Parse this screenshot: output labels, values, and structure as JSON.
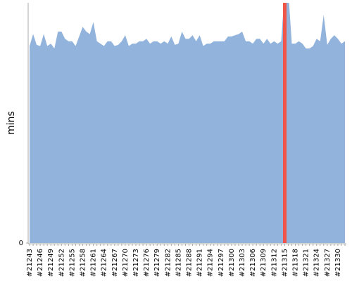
{
  "chart_data": {
    "type": "area",
    "y_label": "mins",
    "categories": [
      "#21243",
      null,
      null,
      "#21246",
      null,
      null,
      "#21249",
      null,
      null,
      "#21252",
      null,
      null,
      "#21255",
      null,
      null,
      "#21258",
      null,
      null,
      "#21261",
      null,
      null,
      "#21264",
      null,
      null,
      "#21267",
      null,
      null,
      "#21270",
      null,
      null,
      "#21273",
      null,
      null,
      "#21276",
      null,
      null,
      "#21279",
      null,
      null,
      "#21282",
      null,
      null,
      "#21285",
      null,
      null,
      "#21288",
      null,
      null,
      "#21291",
      null,
      null,
      "#21294",
      null,
      null,
      "#21297",
      null,
      null,
      "#21300",
      null,
      null,
      "#21303",
      null,
      null,
      "#21306",
      null,
      null,
      "#21309",
      null,
      null,
      "#21312",
      null,
      null,
      "#21315",
      null,
      null,
      "#21318",
      null,
      null,
      "#21321",
      null,
      null,
      "#21324",
      null,
      null,
      "#21327",
      null,
      null,
      "#21330",
      null,
      null
    ],
    "series": [
      {
        "color": "#91b3dc",
        "values": [
          82,
          87,
          82.5,
          82,
          87,
          82,
          83,
          81,
          88,
          88,
          85,
          84,
          84,
          82,
          86,
          90,
          88,
          87,
          92,
          84,
          83,
          82,
          84,
          84,
          82,
          82.5,
          84,
          86.5,
          82,
          83,
          83,
          84,
          84,
          85,
          83,
          84,
          84,
          83,
          84,
          83,
          86,
          82.5,
          83,
          88,
          85,
          85,
          86.5,
          84,
          86.5,
          82,
          83,
          83,
          84,
          84,
          84,
          84,
          86,
          86,
          86.5,
          87,
          88,
          84,
          84,
          83,
          85,
          85,
          83,
          85,
          83,
          84,
          83,
          84,
          105,
          105,
          83,
          83,
          84,
          83,
          81,
          81,
          82,
          85,
          84,
          95,
          82.5,
          85,
          86.5,
          85,
          83,
          84
        ]
      }
    ],
    "ylim": [
      0,
      100
    ],
    "yticks": [
      0
    ]
  }
}
